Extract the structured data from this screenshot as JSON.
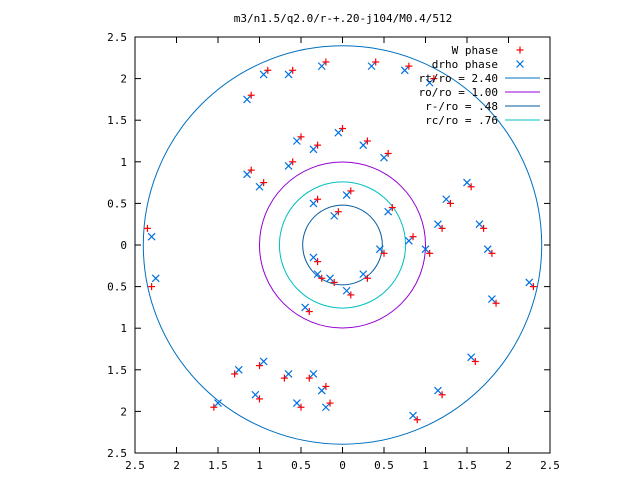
{
  "chart_data": {
    "type": "scatter",
    "title": "m3/n1.5/q2.0/r-+.20-j104/M0.4/512",
    "xlabel": "",
    "ylabel": "",
    "xlim": [
      -2.5,
      2.5
    ],
    "ylim": [
      -2.5,
      2.5
    ],
    "x_ticks": [
      -2.5,
      -2,
      -1.5,
      -1,
      -0.5,
      0,
      0.5,
      1,
      1.5,
      2,
      2.5
    ],
    "x_tick_labels": [
      "2.5",
      "2",
      "1.5",
      "1",
      "0.5",
      "0",
      "0.5",
      "1",
      "1.5",
      "2",
      "2.5"
    ],
    "y_ticks": [
      2.5,
      2,
      1.5,
      1,
      0.5,
      0,
      -0.5,
      -1,
      -1.5,
      -2,
      -2.5
    ],
    "y_tick_labels": [
      "2.5",
      "2",
      "1.5",
      "1",
      "0.5",
      "0",
      "0.5",
      "1",
      "1.5",
      "2",
      "2.5"
    ],
    "grid": false,
    "legend_position": "top-right",
    "series": [
      {
        "name": "W phase",
        "marker": "+",
        "color": "#ff0000",
        "points": [
          [
            -1.55,
            -1.95
          ],
          [
            -1.3,
            -1.55
          ],
          [
            -1.0,
            -1.45
          ],
          [
            -0.7,
            -1.6
          ],
          [
            -0.4,
            -1.6
          ],
          [
            -0.2,
            -1.7
          ],
          [
            -0.15,
            -1.9
          ],
          [
            -0.5,
            -1.95
          ],
          [
            -1.0,
            -1.85
          ],
          [
            -2.3,
            -0.5
          ],
          [
            -2.35,
            0.2
          ],
          [
            -0.4,
            -0.8
          ],
          [
            -0.25,
            -0.4
          ],
          [
            -0.3,
            -0.2
          ],
          [
            -0.1,
            -0.45
          ],
          [
            -0.3,
            0.55
          ],
          [
            -0.05,
            0.4
          ],
          [
            0.1,
            0.65
          ],
          [
            0.55,
            1.1
          ],
          [
            0.3,
            1.25
          ],
          [
            0.0,
            1.4
          ],
          [
            -0.3,
            1.2
          ],
          [
            -0.6,
            1.0
          ],
          [
            -0.95,
            0.75
          ],
          [
            -1.1,
            0.9
          ],
          [
            -0.5,
            1.3
          ],
          [
            0.6,
            0.45
          ],
          [
            0.85,
            0.1
          ],
          [
            1.05,
            -0.1
          ],
          [
            1.2,
            0.2
          ],
          [
            1.3,
            0.5
          ],
          [
            1.55,
            0.7
          ],
          [
            1.7,
            0.2
          ],
          [
            1.8,
            -0.1
          ],
          [
            1.85,
            -0.7
          ],
          [
            1.6,
            -1.4
          ],
          [
            1.2,
            -1.8
          ],
          [
            0.9,
            -2.1
          ],
          [
            2.3,
            -0.5
          ],
          [
            0.5,
            -0.1
          ],
          [
            0.3,
            -0.4
          ],
          [
            0.1,
            -0.6
          ],
          [
            0.4,
            2.2
          ],
          [
            0.8,
            2.15
          ],
          [
            1.1,
            2.0
          ],
          [
            -0.6,
            2.1
          ],
          [
            -0.2,
            2.2
          ],
          [
            -0.9,
            2.1
          ],
          [
            -1.1,
            1.8
          ]
        ]
      },
      {
        "name": "drho phase",
        "marker": "x",
        "color": "#0070e0",
        "points": [
          [
            -1.5,
            -1.9
          ],
          [
            -1.25,
            -1.5
          ],
          [
            -0.95,
            -1.4
          ],
          [
            -0.65,
            -1.55
          ],
          [
            -0.35,
            -1.55
          ],
          [
            -0.25,
            -1.75
          ],
          [
            -0.2,
            -1.95
          ],
          [
            -0.55,
            -1.9
          ],
          [
            -1.05,
            -1.8
          ],
          [
            -2.25,
            -0.4
          ],
          [
            -2.3,
            0.1
          ],
          [
            -0.45,
            -0.75
          ],
          [
            -0.3,
            -0.35
          ],
          [
            -0.35,
            -0.15
          ],
          [
            -0.15,
            -0.4
          ],
          [
            -0.35,
            0.5
          ],
          [
            -0.1,
            0.35
          ],
          [
            0.05,
            0.6
          ],
          [
            0.5,
            1.05
          ],
          [
            0.25,
            1.2
          ],
          [
            -0.05,
            1.35
          ],
          [
            -0.35,
            1.15
          ],
          [
            -0.65,
            0.95
          ],
          [
            -1.0,
            0.7
          ],
          [
            -1.15,
            0.85
          ],
          [
            -0.55,
            1.25
          ],
          [
            0.55,
            0.4
          ],
          [
            0.8,
            0.05
          ],
          [
            1.0,
            -0.05
          ],
          [
            1.15,
            0.25
          ],
          [
            1.25,
            0.55
          ],
          [
            1.5,
            0.75
          ],
          [
            1.65,
            0.25
          ],
          [
            1.75,
            -0.05
          ],
          [
            1.8,
            -0.65
          ],
          [
            1.55,
            -1.35
          ],
          [
            1.15,
            -1.75
          ],
          [
            0.85,
            -2.05
          ],
          [
            2.25,
            -0.45
          ],
          [
            0.45,
            -0.05
          ],
          [
            0.25,
            -0.35
          ],
          [
            0.05,
            -0.55
          ],
          [
            0.35,
            2.15
          ],
          [
            0.75,
            2.1
          ],
          [
            1.05,
            1.95
          ],
          [
            -0.65,
            2.05
          ],
          [
            -0.25,
            2.15
          ],
          [
            -0.95,
            2.05
          ],
          [
            -1.15,
            1.75
          ]
        ]
      },
      {
        "name": "rt/ro = 2.40",
        "type": "circle",
        "radius": 2.4,
        "color": "#0070c0"
      },
      {
        "name": "ro/ro = 1.00",
        "type": "circle",
        "radius": 1.0,
        "color": "#9400d3"
      },
      {
        "name": "r-/ro = .48",
        "type": "circle",
        "radius": 0.48,
        "color": "#005aa0"
      },
      {
        "name": "rc/ro = .76",
        "type": "circle",
        "radius": 0.76,
        "color": "#00c0c0"
      }
    ]
  }
}
